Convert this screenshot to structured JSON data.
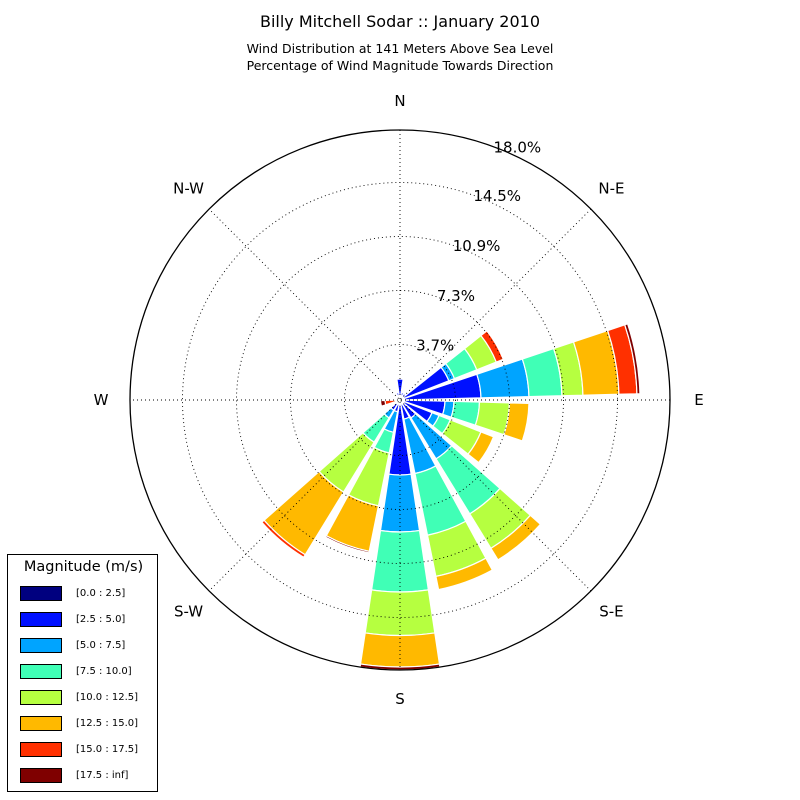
{
  "title": "Billy Mitchell Sodar :: January 2010",
  "subtitle_line1": "Wind Distribution at 141 Meters Above Sea Level",
  "subtitle_line2": "Percentage of Wind Magnitude Towards Direction",
  "directions": [
    "N",
    "N-E",
    "E",
    "S-E",
    "S",
    "S-W",
    "W",
    "N-W"
  ],
  "legend": {
    "title": "Magnitude (m/s)",
    "items": [
      {
        "label": "[0.0 : 2.5]",
        "color": "#00007f"
      },
      {
        "label": "[2.5 : 5.0]",
        "color": "#0010ff"
      },
      {
        "label": "[5.0 : 7.5]",
        "color": "#00a4ff"
      },
      {
        "label": "[7.5 : 10.0]",
        "color": "#40ffb6"
      },
      {
        "label": "[10.0 : 12.5]",
        "color": "#b6ff40"
      },
      {
        "label": "[12.5 : 15.0]",
        "color": "#ffb900"
      },
      {
        "label": "[15.0 : 17.5]",
        "color": "#ff3000"
      },
      {
        "label": "[17.5 : inf]",
        "color": "#7f0000"
      }
    ]
  },
  "chart_data": {
    "type": "wind-rose",
    "rmax": 18.0,
    "radial_labels": [
      "3.7%",
      "7.3%",
      "10.9%",
      "14.5%",
      "18.0%"
    ],
    "radial_values": [
      3.7,
      7.3,
      10.9,
      14.5,
      18.0
    ],
    "grid": true,
    "sector_width_deg": 17,
    "bins": [
      "[0.0 : 2.5]",
      "[2.5 : 5.0]",
      "[5.0 : 7.5]",
      "[7.5 : 10.0]",
      "[10.0 : 12.5]",
      "[12.5 : 15.0]",
      "[15.0 : 17.5]",
      "[17.5 : inf]"
    ],
    "sectors": [
      {
        "direction_deg": 0,
        "cumulative": [
          0.3,
          1.4,
          1.4,
          1.4,
          1.4,
          1.4,
          1.4,
          1.4
        ]
      },
      {
        "direction_deg": 20,
        "cumulative": [
          0.3,
          0.5,
          0.5,
          0.5,
          0.5,
          0.5,
          0.5,
          0.5
        ]
      },
      {
        "direction_deg": 40,
        "cumulative": [
          0.3,
          0.5,
          0.5,
          0.5,
          0.5,
          0.5,
          0.5,
          0.5
        ]
      },
      {
        "direction_deg": 60,
        "cumulative": [
          0.3,
          3.5,
          3.9,
          5.5,
          6.9,
          6.9,
          7.4,
          7.4
        ]
      },
      {
        "direction_deg": 80,
        "cumulative": [
          0.3,
          5.4,
          8.6,
          10.8,
          12.2,
          14.6,
          15.8,
          16.0
        ]
      },
      {
        "direction_deg": 100,
        "cumulative": [
          0.3,
          3.0,
          3.6,
          5.3,
          7.3,
          8.6,
          8.6,
          8.6
        ]
      },
      {
        "direction_deg": 120,
        "cumulative": [
          0.3,
          2.3,
          2.8,
          3.6,
          5.8,
          6.7,
          6.7,
          6.7
        ]
      },
      {
        "direction_deg": 140,
        "cumulative": [
          0.3,
          1.4,
          4.6,
          8.9,
          11.6,
          12.5,
          12.5,
          12.5
        ]
      },
      {
        "direction_deg": 160,
        "cumulative": [
          0.3,
          1.3,
          5.0,
          9.2,
          12.0,
          12.9,
          12.9,
          12.9
        ]
      },
      {
        "direction_deg": 180,
        "cumulative": [
          0.3,
          5.0,
          8.8,
          12.8,
          15.7,
          17.8,
          17.8,
          18.0
        ]
      },
      {
        "direction_deg": 200,
        "cumulative": [
          0.3,
          0.8,
          2.2,
          3.6,
          7.2,
          10.3,
          10.3,
          10.4
        ]
      },
      {
        "direction_deg": 220,
        "cumulative": [
          0.3,
          0.8,
          1.4,
          3.3,
          7.2,
          12.1,
          12.3,
          12.3
        ]
      },
      {
        "direction_deg": 240,
        "cumulative": [
          0.3,
          0.3,
          0.3,
          0.3,
          0.3,
          0.3,
          0.3,
          0.3
        ]
      },
      {
        "direction_deg": 260,
        "cumulative": [
          0.3,
          0.3,
          0.3,
          0.3,
          0.3,
          0.3,
          1.0,
          1.3
        ]
      },
      {
        "direction_deg": 280,
        "cumulative": [
          0.3,
          0.3,
          0.3,
          0.3,
          0.3,
          0.3,
          0.3,
          0.3
        ]
      },
      {
        "direction_deg": 300,
        "cumulative": [
          0.3,
          0.3,
          0.3,
          0.3,
          0.3,
          0.3,
          0.3,
          0.3
        ]
      },
      {
        "direction_deg": 320,
        "cumulative": [
          0.3,
          0.3,
          0.3,
          0.3,
          0.3,
          0.3,
          0.3,
          0.3
        ]
      },
      {
        "direction_deg": 340,
        "cumulative": [
          0.3,
          0.5,
          0.5,
          0.5,
          0.5,
          0.5,
          0.5,
          0.5
        ]
      }
    ]
  }
}
